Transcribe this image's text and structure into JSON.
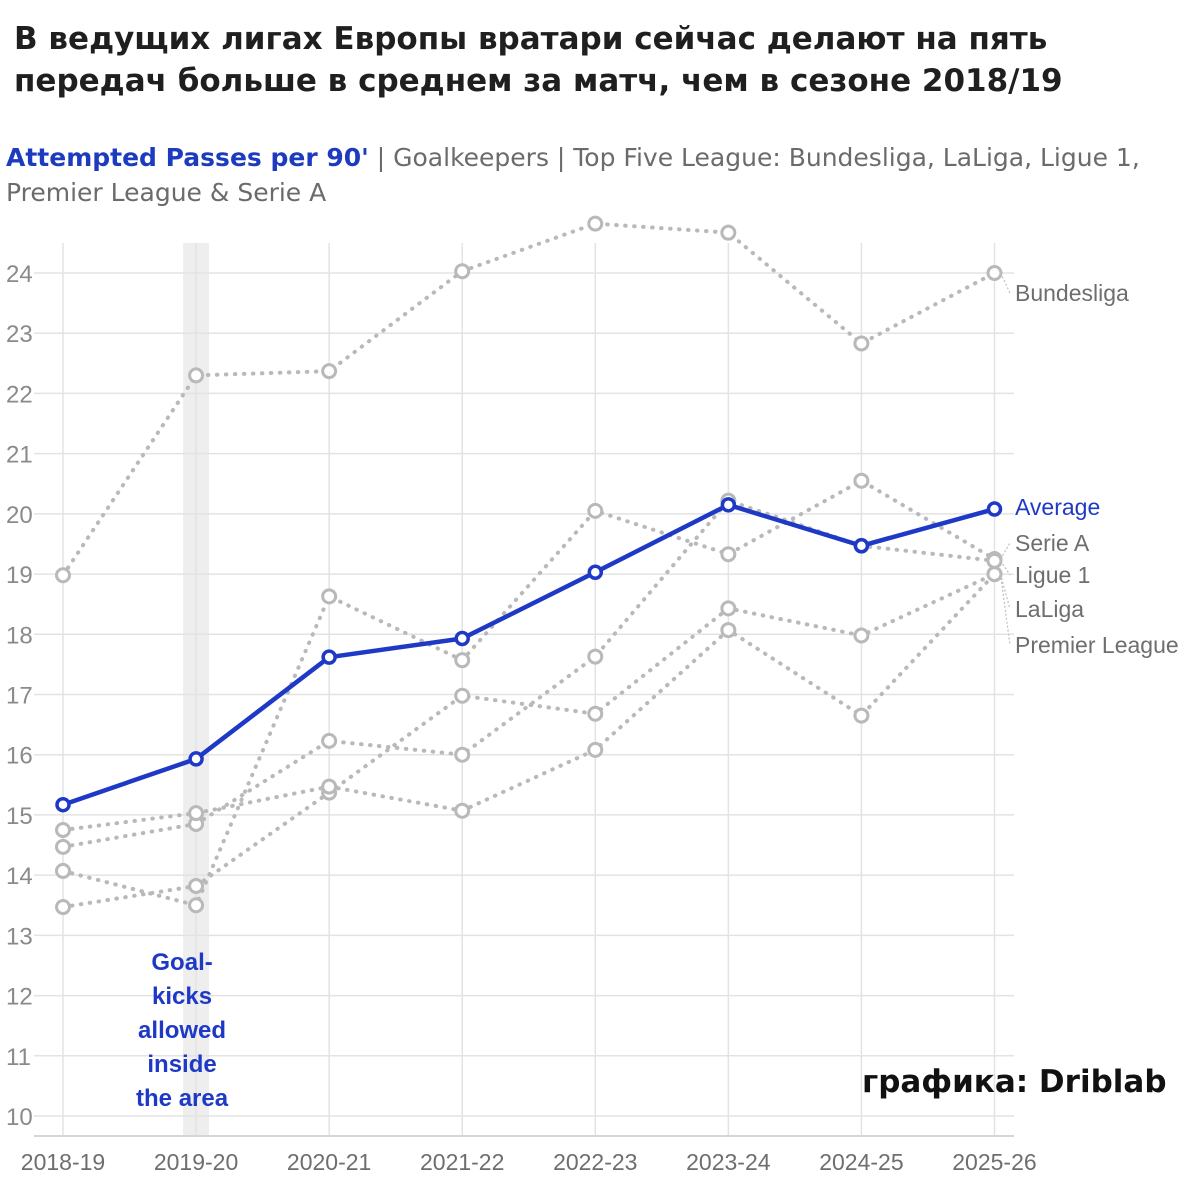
{
  "headline": "В ведущих лигах Европы вратари сейчас делают на пять передач больше в среднем за матч, чем в сезоне 2018/19",
  "credit": "графика: Driblab",
  "chart_data": {
    "type": "line",
    "title_highlight": "Attempted Passes per 90'",
    "title_rest": " | Goalkeepers | Top Five League: Bundesliga, LaLiga, Ligue 1, Premier League & Serie A",
    "categories": [
      "2018-19",
      "2019-20",
      "2020-21",
      "2021-22",
      "2022-23",
      "2023-24",
      "2024-25",
      "2025-26"
    ],
    "ylim": [
      10,
      24.5
    ],
    "yticks": [
      10,
      11,
      12,
      13,
      14,
      15,
      16,
      17,
      18,
      19,
      20,
      21,
      22,
      23,
      24
    ],
    "grid": true,
    "annotation": {
      "category_index": 1,
      "lines": [
        "Goal-",
        "kicks",
        "allowed",
        "inside",
        "the area"
      ]
    },
    "colors": {
      "average": "#1f39c7",
      "league": "#b9b9b9",
      "annotation_band": "#eeeeee",
      "grid": "#e3e3e3"
    },
    "series": [
      {
        "name": "Bundesliga",
        "kind": "league",
        "values": [
          18.98,
          22.3,
          22.37,
          24.03,
          24.82,
          24.67,
          22.83,
          24.0
        ]
      },
      {
        "name": "Serie A",
        "kind": "league",
        "values": [
          14.07,
          13.5,
          18.63,
          17.57,
          20.05,
          19.33,
          20.55,
          19.25
        ]
      },
      {
        "name": "Ligue 1",
        "kind": "league",
        "values": [
          14.47,
          14.85,
          16.23,
          16.0,
          17.63,
          20.22,
          19.47,
          19.22
        ]
      },
      {
        "name": "LaLiga",
        "kind": "league",
        "values": [
          13.47,
          13.82,
          15.37,
          16.98,
          16.68,
          18.43,
          17.98,
          19.0
        ]
      },
      {
        "name": "Premier League",
        "kind": "league",
        "values": [
          14.75,
          15.03,
          15.47,
          15.07,
          16.08,
          18.07,
          16.65,
          19.0
        ]
      },
      {
        "name": "Average",
        "kind": "average",
        "values": [
          15.17,
          15.93,
          17.62,
          17.93,
          19.03,
          20.15,
          19.47,
          20.08
        ]
      }
    ],
    "legend_order": [
      "Bundesliga",
      "Average",
      "Serie A",
      "Ligue 1",
      "LaLiga",
      "Premier League"
    ]
  }
}
